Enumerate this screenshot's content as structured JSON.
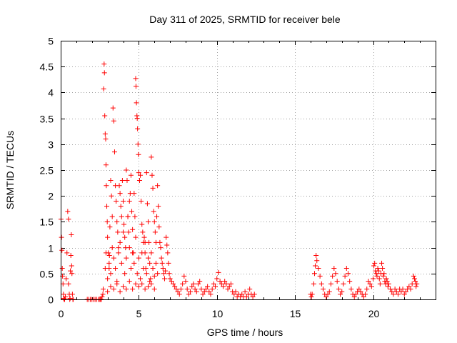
{
  "chart_data": {
    "type": "scatter",
    "title": "Day 311 of 2025, SRMTID for receiver bele",
    "xlabel": "GPS time / hours",
    "ylabel": "SRMTID / TECUs",
    "xlim": [
      0,
      24
    ],
    "ylim": [
      0,
      5
    ],
    "xticks": [
      0,
      5,
      10,
      15,
      20
    ],
    "xtick_labels": [
      "0",
      "5",
      "10",
      "15",
      "20"
    ],
    "yticks": [
      0,
      0.5,
      1,
      1.5,
      2,
      2.5,
      3,
      3.5,
      4,
      4.5,
      5
    ],
    "ytick_labels": [
      "0",
      "0.5",
      "1",
      "1.5",
      "2",
      "2.5",
      "3",
      "3.5",
      "4",
      "4.5",
      "5"
    ],
    "grid": true,
    "marker": "+",
    "color": "#ff0000",
    "series": [
      {
        "name": "SRMTID",
        "x": [
          0.02,
          0.05,
          0.08,
          0.1,
          0.12,
          0.15,
          0.18,
          0.2,
          0.22,
          0.25,
          0.3,
          0.35,
          0.4,
          0.45,
          0.5,
          0.5,
          0.55,
          0.58,
          0.6,
          0.62,
          0.65,
          0.68,
          0.7,
          0.72,
          0.75,
          0.78,
          0.8,
          1.7,
          1.8,
          1.9,
          2.0,
          2.1,
          2.2,
          2.3,
          2.4,
          2.5,
          2.55,
          2.6,
          2.65,
          2.7,
          2.72,
          2.75,
          2.78,
          2.8,
          2.82,
          2.85,
          2.88,
          2.9,
          2.92,
          2.95,
          2.98,
          3.0,
          3.05,
          3.1,
          3.12,
          3.15,
          3.2,
          3.25,
          3.3,
          3.35,
          3.4,
          3.45,
          3.5,
          3.55,
          3.6,
          3.65,
          3.7,
          3.75,
          3.8,
          3.85,
          3.9,
          3.95,
          4.0,
          4.05,
          4.1,
          4.15,
          4.2,
          4.25,
          4.3,
          4.35,
          4.4,
          4.45,
          4.5,
          4.55,
          4.6,
          4.65,
          4.7,
          4.75,
          4.8,
          4.82,
          4.85,
          4.88,
          4.9,
          4.92,
          4.95,
          4.98,
          5.0,
          5.05,
          5.1,
          5.15,
          5.2,
          5.25,
          5.3,
          5.35,
          5.4,
          5.45,
          5.5,
          5.55,
          5.6,
          5.65,
          5.7,
          5.75,
          5.8,
          5.85,
          5.9,
          5.95,
          6.0,
          6.05,
          6.1,
          6.15,
          6.2,
          6.25,
          6.3,
          6.35,
          6.4,
          6.45,
          6.5,
          6.55,
          6.6,
          6.65,
          6.7,
          6.75,
          6.8,
          6.85,
          6.9,
          6.95,
          7.0,
          2.85,
          2.9,
          3.0,
          3.1,
          3.2,
          3.3,
          3.4,
          3.5,
          3.6,
          3.7,
          3.8,
          3.9,
          4.0,
          4.1,
          4.2,
          4.3,
          4.4,
          4.5,
          4.6,
          4.7,
          4.8,
          4.9,
          5.0,
          5.1,
          5.2,
          5.3,
          5.4,
          5.5,
          5.6,
          5.7,
          5.8,
          5.9,
          6.0,
          6.1,
          6.2,
          3.0,
          3.2,
          3.4,
          3.6,
          3.8,
          4.0,
          4.2,
          4.4,
          4.6,
          4.8,
          5.0,
          5.2,
          5.4,
          5.6,
          5.8,
          6.0,
          7.1,
          7.2,
          7.3,
          7.4,
          7.5,
          7.6,
          7.7,
          7.8,
          7.9,
          8.0,
          8.1,
          8.2,
          8.3,
          8.4,
          8.5,
          8.6,
          8.7,
          8.8,
          8.9,
          9.0,
          9.1,
          9.2,
          9.3,
          9.4,
          9.5,
          9.6,
          9.7,
          9.8,
          9.9,
          10.0,
          10.1,
          10.2,
          10.3,
          10.4,
          10.5,
          10.6,
          10.7,
          10.8,
          10.9,
          11.0,
          11.1,
          11.2,
          11.3,
          11.4,
          11.5,
          11.6,
          11.7,
          11.8,
          11.9,
          12.0,
          12.1,
          12.2,
          12.3,
          12.4,
          16.0,
          16.05,
          16.1,
          16.2,
          16.25,
          16.3,
          16.35,
          16.4,
          16.5,
          16.6,
          16.7,
          16.8,
          16.9,
          17.0,
          17.1,
          17.2,
          17.3,
          17.4,
          17.5,
          17.6,
          17.7,
          17.8,
          17.9,
          18.0,
          18.1,
          18.2,
          18.3,
          18.4,
          18.5,
          18.6,
          18.7,
          18.8,
          18.9,
          19.0,
          19.1,
          19.2,
          19.3,
          19.4,
          19.5,
          19.6,
          19.7,
          19.8,
          19.9,
          20.0,
          20.05,
          20.1,
          20.15,
          20.2,
          20.25,
          20.3,
          20.35,
          20.4,
          20.45,
          20.5,
          20.55,
          20.6,
          20.65,
          20.7,
          20.75,
          20.8,
          20.85,
          20.9,
          20.95,
          21.0,
          21.1,
          21.2,
          21.3,
          21.4,
          21.5,
          21.6,
          21.7,
          21.8,
          21.9,
          22.0,
          22.1,
          22.2,
          22.3,
          22.4,
          22.5,
          22.6,
          22.65,
          22.7,
          22.75,
          22.8
        ],
        "y": [
          1.55,
          1.2,
          0.95,
          0.6,
          0.45,
          0.3,
          0.1,
          0.02,
          0.0,
          0.0,
          0.05,
          0.4,
          0.9,
          1.7,
          1.55,
          0.3,
          0.1,
          0.0,
          0.02,
          0.55,
          0.85,
          1.25,
          0.65,
          0.5,
          0.1,
          0.0,
          0.0,
          0.0,
          0.0,
          0.0,
          0.0,
          0.0,
          0.0,
          0.0,
          0.0,
          0.0,
          0.0,
          0.0,
          0.05,
          0.1,
          0.2,
          4.07,
          4.55,
          4.38,
          3.55,
          3.2,
          3.1,
          2.6,
          2.2,
          1.8,
          1.5,
          1.2,
          0.9,
          0.6,
          0.85,
          1.4,
          2.3,
          2.0,
          1.6,
          3.7,
          3.45,
          2.85,
          2.2,
          1.9,
          1.5,
          1.3,
          1.0,
          2.2,
          2.05,
          1.8,
          1.6,
          2.3,
          1.9,
          1.45,
          1.2,
          1.0,
          2.5,
          2.3,
          1.6,
          1.3,
          1.9,
          2.05,
          2.4,
          1.7,
          1.35,
          0.9,
          2.05,
          1.6,
          4.27,
          4.12,
          3.8,
          3.55,
          3.5,
          3.3,
          3.0,
          2.8,
          2.45,
          2.3,
          2.4,
          1.9,
          1.45,
          1.3,
          1.1,
          1.2,
          0.9,
          0.6,
          2.45,
          1.85,
          1.5,
          1.1,
          0.7,
          0.4,
          2.75,
          2.4,
          2.15,
          1.7,
          1.5,
          1.3,
          1.1,
          1.6,
          2.2,
          1.8,
          1.4,
          1.1,
          1.0,
          0.8,
          0.7,
          0.6,
          0.5,
          0.4,
          0.55,
          1.2,
          1.05,
          0.9,
          0.7,
          0.5,
          0.4,
          0.6,
          0.9,
          0.4,
          0.7,
          0.5,
          1.0,
          0.8,
          0.6,
          0.35,
          0.9,
          1.1,
          0.7,
          1.3,
          0.5,
          0.8,
          1.6,
          1.0,
          0.6,
          0.9,
          0.7,
          1.2,
          0.5,
          0.8,
          0.4,
          0.9,
          0.6,
          1.1,
          0.5,
          0.8,
          0.35,
          0.9,
          0.6,
          0.45,
          0.7,
          0.5,
          0.15,
          0.25,
          0.2,
          0.3,
          0.15,
          0.25,
          0.2,
          0.35,
          0.2,
          0.3,
          0.25,
          0.3,
          0.2,
          0.25,
          0.3,
          0.2,
          0.35,
          0.3,
          0.25,
          0.2,
          0.15,
          0.1,
          0.2,
          0.3,
          0.45,
          0.35,
          0.2,
          0.1,
          0.15,
          0.25,
          0.3,
          0.2,
          0.15,
          0.3,
          0.35,
          0.2,
          0.1,
          0.15,
          0.2,
          0.25,
          0.15,
          0.1,
          0.2,
          0.3,
          0.25,
          0.4,
          0.52,
          0.35,
          0.3,
          0.25,
          0.35,
          0.3,
          0.2,
          0.25,
          0.3,
          0.15,
          0.1,
          0.15,
          0.05,
          0.1,
          0.05,
          0.1,
          0.05,
          0.15,
          0.05,
          0.1,
          0.2,
          0.1,
          0.05,
          0.1,
          0.1,
          0.05,
          0.1,
          0.3,
          0.5,
          0.65,
          0.85,
          0.75,
          0.6,
          0.45,
          0.3,
          0.2,
          0.1,
          0.05,
          0.1,
          0.15,
          0.3,
          0.45,
          0.6,
          0.5,
          0.35,
          0.2,
          0.1,
          0.15,
          0.3,
          0.45,
          0.6,
          0.5,
          0.35,
          0.2,
          0.1,
          0.05,
          0.1,
          0.15,
          0.2,
          0.15,
          0.1,
          0.05,
          0.1,
          0.2,
          0.35,
          0.3,
          0.25,
          0.4,
          0.65,
          0.7,
          0.55,
          0.5,
          0.45,
          0.6,
          0.55,
          0.4,
          0.3,
          0.5,
          0.7,
          0.6,
          0.45,
          0.5,
          0.35,
          0.3,
          0.4,
          0.35,
          0.25,
          0.3,
          0.2,
          0.15,
          0.1,
          0.2,
          0.15,
          0.1,
          0.2,
          0.15,
          0.2,
          0.1,
          0.15,
          0.2,
          0.25,
          0.2,
          0.3,
          0.45,
          0.4,
          0.35,
          0.25,
          0.3
        ]
      }
    ]
  }
}
